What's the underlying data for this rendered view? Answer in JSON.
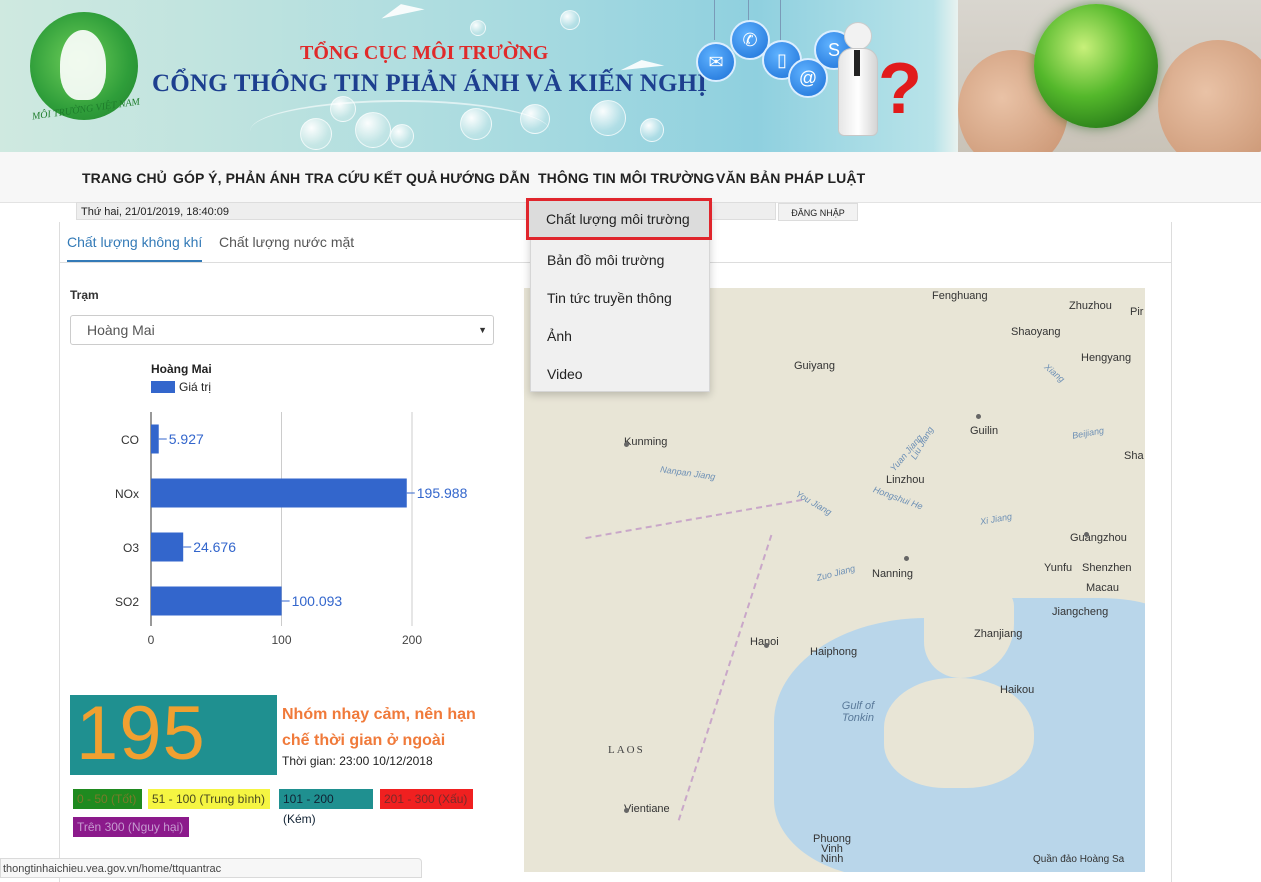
{
  "header": {
    "org_name": "TỔNG CỤC MÔI TRƯỜNG",
    "portal_name": "CỔNG THÔNG TIN PHẢN ÁNH VÀ KIẾN NGHỊ",
    "logo_text": "MÔI TRƯỜNG VIỆT NAM",
    "question_mark": "?"
  },
  "nav": {
    "items": [
      "TRANG CHỦ",
      "GÓP Ý, PHẢN ÁNH",
      "TRA CỨU KẾT QUẢ",
      "HƯỚNG DẪN",
      "THÔNG TIN MÔI TRƯỜNG",
      "VĂN BẢN PHÁP LUẬT"
    ]
  },
  "datebar": {
    "datetime": "Thứ hai, 21/01/2019, 18:40:09",
    "login_label": "ĐĂNG NHẬP"
  },
  "dropdown": {
    "items": [
      "Chất lượng môi trường",
      "Bản đồ môi trường",
      "Tin tức truyền thông",
      "Ảnh",
      "Video"
    ]
  },
  "tabs": {
    "items": [
      "Chất lượng không khí",
      "Chất lượng nước mặt"
    ]
  },
  "station": {
    "label": "Trạm",
    "selected": "Hoàng Mai"
  },
  "chart_data": {
    "type": "bar",
    "orientation": "horizontal",
    "title": "Hoàng Mai",
    "categories": [
      "CO",
      "NOx",
      "O3",
      "SO2"
    ],
    "series": [
      {
        "name": "Giá trị",
        "values": [
          5.927,
          195.988,
          24.676,
          100.093
        ],
        "color": "#3366cc"
      }
    ],
    "value_labels": [
      "5.927",
      "195.988",
      "24.676",
      "100.093"
    ],
    "xlim": [
      0,
      200
    ],
    "x_ticks": [
      "0",
      "100",
      "200"
    ],
    "grid": true,
    "legend_position": "top-left"
  },
  "aqi": {
    "value": "195",
    "description": "Nhóm nhạy cảm, nên hạn chế thời gian ở ngoài",
    "time": "Thời gian: 23:00 10/12/2018",
    "box_color": "#1f9090",
    "value_color": "#f0a030"
  },
  "scale": [
    {
      "label": "0 - 50 (Tốt)",
      "color": "#1f8a1f"
    },
    {
      "label": "51 - 100 (Trung bình)",
      "color": "#f5f542"
    },
    {
      "label": "101 - 200 (Kém)",
      "color": "#1f9090"
    },
    {
      "label": "201 - 300 (Xấu)",
      "color": "#f02020"
    },
    {
      "label": "Trên 300 (Nguy hại)",
      "color": "#8b1a8b"
    }
  ],
  "map": {
    "cities": [
      "Fenghuang",
      "Zhuzhou",
      "Shaoyang",
      "Hengyang",
      "Guiyang",
      "Kunming",
      "Guilin",
      "Linzhou",
      "Nanning",
      "Guangzhou",
      "Yunfu",
      "Shenzhen",
      "Macau",
      "Jiangcheng",
      "Zhanjiang",
      "Hanoi",
      "Haiphong",
      "Haikou",
      "Vientiane",
      "Phuong Vinh Ninh",
      "Sha",
      "Pir"
    ],
    "rivers": [
      "Xiang",
      "Yuan Jiang",
      "Hongshui He",
      "You Jiang",
      "Zuo Jiang",
      "Xi Jiang",
      "Nanpan Jiang",
      "Beijiang",
      "Liu Jiang"
    ],
    "areas": [
      "LAOS",
      "Gulf of Tonkin"
    ],
    "attribution": "Quần đảo Hoàng Sa"
  },
  "statusbar": {
    "url": "thongtinhaichieu.vea.gov.vn/home/ttquantrac"
  }
}
